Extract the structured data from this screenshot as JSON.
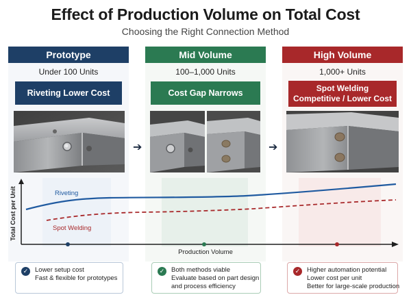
{
  "title": "Effect of Production Volume on Total Cost",
  "subtitle": "Choosing the Right Connection Method",
  "columns": [
    {
      "header": "Prototype",
      "units": "Under 100 Units",
      "method": "Riveting Lower Cost",
      "color": "#1e3f66",
      "notes": [
        "Lower setup cost",
        "Fast & flexible for prototypes"
      ]
    },
    {
      "header": "Mid Volume",
      "units": "100–1,000 Units",
      "method": "Cost Gap Narrows",
      "color": "#2b7a52",
      "notes": [
        "Both methods viable",
        "Evaluate based on part design",
        "and process efficiency"
      ]
    },
    {
      "header": "High Volume",
      "units": "1,000+ Units",
      "method_line1": "Spot Welding",
      "method_line2": "Competitive / Lower Cost",
      "color": "#a8282a",
      "notes": [
        "Higher automation potential",
        "Lower cost per unit",
        "Better for large-scale production"
      ]
    }
  ],
  "chart": {
    "ylabel": "Total Cost per Unit",
    "xlabel": "Production Volume",
    "series": [
      {
        "name": "Riveting",
        "color": "#1f5aa0",
        "style": "solid"
      },
      {
        "name": "Spot Welding",
        "color": "#a8282a",
        "style": "dashed"
      }
    ]
  }
}
